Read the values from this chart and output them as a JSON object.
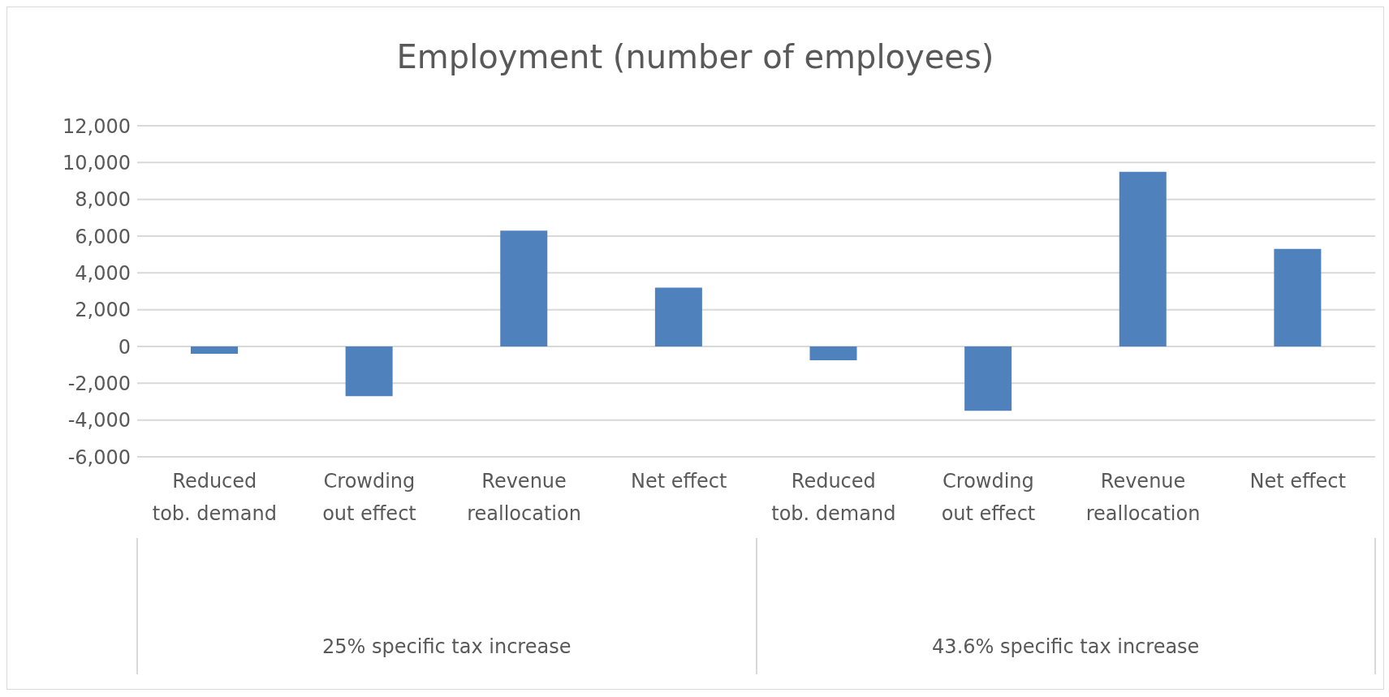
{
  "chart_data": {
    "type": "bar",
    "title": "Employment (number of employees)",
    "categories": [
      "Reduced tob. demand",
      "Crowding out effect",
      "Revenue reallocation",
      "Net effect",
      "Reduced tob. demand",
      "Crowding out effect",
      "Revenue reallocation",
      "Net effect"
    ],
    "values": [
      -400,
      -2700,
      6300,
      3200,
      -750,
      -3500,
      9500,
      5300
    ],
    "color": "#4f81bd",
    "ylim": [
      -6000,
      12000
    ],
    "yticks": [
      {
        "value": -6000,
        "label": "-6,000"
      },
      {
        "value": -4000,
        "label": "-4,000"
      },
      {
        "value": -2000,
        "label": "-2,000"
      },
      {
        "value": 0,
        "label": "0"
      },
      {
        "value": 2000,
        "label": "2,000"
      },
      {
        "value": 4000,
        "label": "4,000"
      },
      {
        "value": 6000,
        "label": "6,000"
      },
      {
        "value": 8000,
        "label": "8,000"
      },
      {
        "value": 10000,
        "label": "10,000"
      },
      {
        "value": 12000,
        "label": "12,000"
      }
    ],
    "grid": "y",
    "annotations": [
      "25% specific tax increase",
      "43.6% specific tax increase"
    ]
  }
}
